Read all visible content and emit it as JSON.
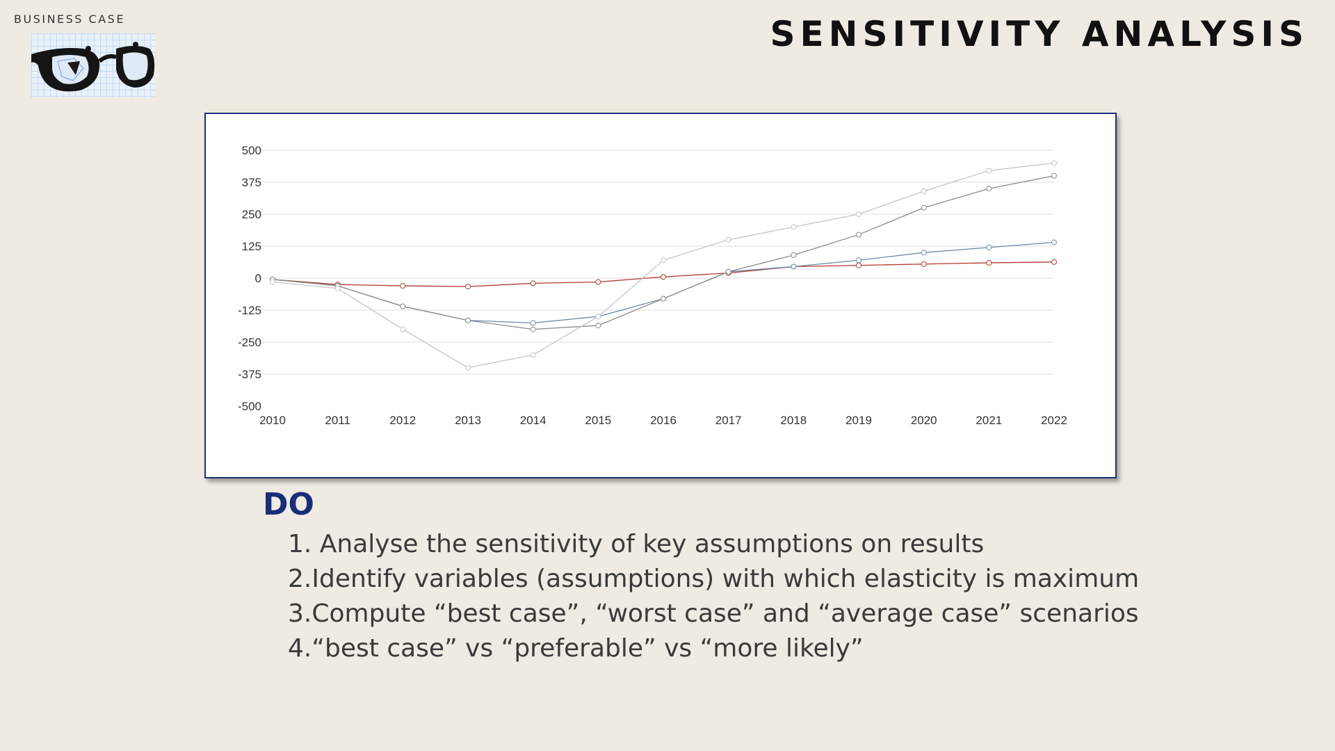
{
  "header": {
    "brand_label": "BUSINESS CASE",
    "title": "SENSITIVITY ANALYSIS",
    "logo_icon": "glasses-icon"
  },
  "colors": {
    "background": "#efebe2",
    "accent": "#1a2d78",
    "frame_border": "#1b2f7a"
  },
  "chart_data": {
    "type": "line",
    "title": "",
    "xlabel": "",
    "ylabel": "",
    "x": [
      "2010",
      "2011",
      "2012",
      "2013",
      "2014",
      "2015",
      "2016",
      "2017",
      "2018",
      "2019",
      "2020",
      "2021",
      "2022"
    ],
    "ylim": [
      -500,
      500
    ],
    "yticks": [
      500,
      375,
      250,
      125,
      0,
      -125,
      -250,
      -375,
      -500
    ],
    "grid": true,
    "legend": "none",
    "series": [
      {
        "color": "#b03a2e",
        "values": [
          -5,
          -25,
          -30,
          -33,
          -20,
          -15,
          5,
          20,
          45,
          50,
          55,
          60,
          63
        ]
      },
      {
        "color": "#6a8aa8",
        "values": [
          -5,
          -30,
          -110,
          -165,
          -175,
          -150,
          -80,
          25,
          45,
          70,
          100,
          120,
          140
        ]
      },
      {
        "color": "#8a8a8a",
        "values": [
          -5,
          -30,
          -110,
          -165,
          -200,
          -185,
          -80,
          25,
          90,
          170,
          275,
          350,
          400
        ]
      },
      {
        "color": "#c4c4c4",
        "values": [
          -15,
          -40,
          -200,
          -350,
          -300,
          -150,
          70,
          150,
          200,
          250,
          340,
          420,
          450
        ]
      }
    ]
  },
  "do_section": {
    "heading": "DO",
    "items": [
      "1. Analyse the sensitivity of key assumptions on results",
      "2.Identify variables (assumptions)  with which elasticity is maximum",
      "3.Compute “best case”, “worst case” and “average case” scenarios",
      "4.“best case” vs “preferable” vs “more likely”"
    ]
  }
}
